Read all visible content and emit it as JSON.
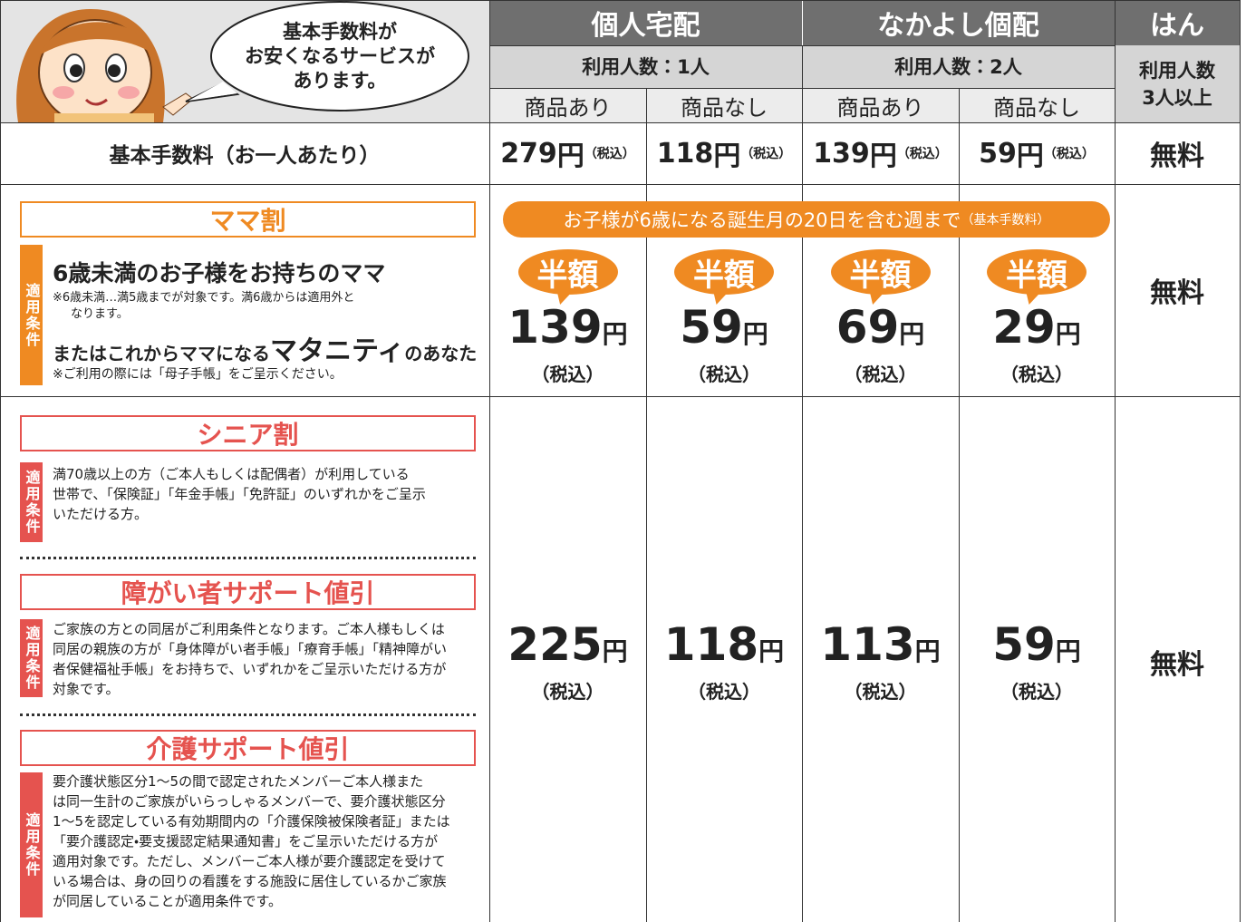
{
  "header": {
    "speech_bubble": [
      "基本手数料が",
      "お安くなるサービスが",
      "あります。"
    ],
    "groups": [
      {
        "name": "個人宅配",
        "people": [
          "利用人数：1人"
        ],
        "sub": [
          "商品あり",
          "商品なし"
        ]
      },
      {
        "name": "なかよし個配",
        "people": [
          "利用人数：2人"
        ],
        "sub": [
          "商品あり",
          "商品なし"
        ]
      },
      {
        "name": "はん",
        "people": [
          "利用人数",
          "3人以上"
        ],
        "sub": []
      }
    ]
  },
  "rows": {
    "basic_fee": {
      "label": "基本手数料（お一人あたり）",
      "cells": [
        {
          "amount": 279,
          "unit": "円",
          "tax": "（税込）"
        },
        {
          "amount": 118,
          "unit": "円",
          "tax": "（税込）"
        },
        {
          "amount": 139,
          "unit": "円",
          "tax": "（税込）"
        },
        {
          "amount": 59,
          "unit": "円",
          "tax": "（税込）"
        },
        {
          "text": "無料"
        }
      ]
    },
    "mama": {
      "title": "ママ割",
      "badge": "適用条件",
      "target": "6歳未満のお子様をお持ちのママ",
      "note": [
        "※6歳未満…満5歳までが対象です。満6歳からは適用外と",
        "なります。"
      ],
      "maternity": [
        "またはこれからママになる",
        "マタニティ",
        "のあなた"
      ],
      "note2": "※ご利用の際には「母子手帳」をご呈示ください。",
      "banner": {
        "text": "お子様が6歳になる誕生月の20日を含む週まで",
        "small": "（基本手数料）"
      },
      "cells": [
        {
          "badge": "半額",
          "amount": 139,
          "unit": "円",
          "tax": "（税込）"
        },
        {
          "badge": "半額",
          "amount": 59,
          "unit": "円",
          "tax": "（税込）"
        },
        {
          "badge": "半額",
          "amount": 69,
          "unit": "円",
          "tax": "（税込）"
        },
        {
          "badge": "半額",
          "amount": 29,
          "unit": "円",
          "tax": "（税込）"
        },
        {
          "text": "無料"
        }
      ]
    },
    "discounts": {
      "sections": [
        {
          "title": "シニア割",
          "badge": "適用条件",
          "lines": [
            "満70歳以上の方（ご本人もしくは配偶者）が利用している",
            "世帯で、「保険証」「年金手帳」「免許証」のいずれかをご呈示",
            "いただける方。"
          ]
        },
        {
          "title": "障がい者サポート値引",
          "badge": "適用条件",
          "lines": [
            "ご家族の方との同居がご利用条件となります。ご本人様もしくは",
            "同居の親族の方が「身体障がい者手帳」「療育手帳」「精神障がい",
            "者保健福祉手帳」をお持ちで、いずれかをご呈示いただける方が",
            "対象です。"
          ]
        },
        {
          "title": "介護サポート値引",
          "badge": "適用条件",
          "lines": [
            "要介護状態区分1～5の間で認定されたメンバーご本人様また",
            "は同一生計のご家族がいらっしゃるメンバーで、要介護状態区分",
            "1～5を認定している有効期間内の「介護保険被保険者証」または",
            "「要介護認定・要支援認定結果通知書」をご呈示いただける方が",
            "適用対象です。ただし、メンバーご本人様が要介護認定を受けて",
            "いる場合は、身の回りの看護をする施設に居住しているかご家族",
            "が同居していることが適用条件です。"
          ]
        }
      ],
      "cells": [
        {
          "amount": 225,
          "unit": "円",
          "tax": "（税込）"
        },
        {
          "amount": 118,
          "unit": "円",
          "tax": "（税込）"
        },
        {
          "amount": 113,
          "unit": "円",
          "tax": "（税込）"
        },
        {
          "amount": 59,
          "unit": "円",
          "tax": "（税込）"
        },
        {
          "text": "無料"
        }
      ]
    }
  }
}
